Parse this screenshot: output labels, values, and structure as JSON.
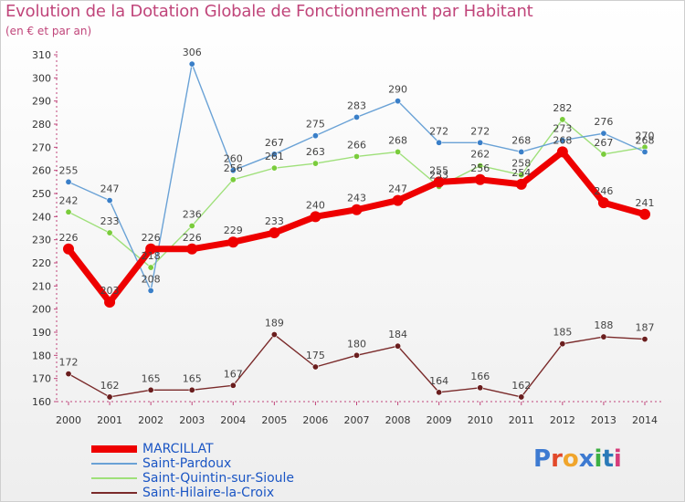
{
  "header": {
    "title": "Evolution de la Dotation Globale de Fonctionnement par Habitant",
    "subtitle": "(en € et par an)"
  },
  "logo": {
    "text": "Proxiti",
    "colors": [
      "#3d7ad1",
      "#e2492a",
      "#f0a52c",
      "#3d7ad1",
      "#3cb043",
      "#2a7ab8",
      "#d63c7a"
    ]
  },
  "chart_data": {
    "type": "line",
    "x": [
      2000,
      2001,
      2002,
      2003,
      2004,
      2005,
      2006,
      2007,
      2008,
      2009,
      2010,
      2011,
      2012,
      2013,
      2014
    ],
    "ylim": [
      160,
      310
    ],
    "yticks": [
      160,
      170,
      180,
      190,
      200,
      210,
      220,
      230,
      240,
      250,
      260,
      270,
      280,
      290,
      300,
      310
    ],
    "title": "Evolution de la Dotation Globale de Fonctionnement par Habitant",
    "subtitle": "(en € et par an)",
    "grid": false,
    "legend_position": "bottom-left",
    "series": [
      {
        "name": "MARCILLAT",
        "color": "#ee0000",
        "marker_color": "#ee0000",
        "emphasis": "bold",
        "values": [
          226,
          203,
          226,
          226,
          229,
          233,
          240,
          243,
          247,
          255,
          256,
          254,
          268,
          246,
          241
        ],
        "labels": [
          "226",
          "203",
          "226",
          "226",
          "229",
          "233",
          "240",
          "243",
          "247",
          "255",
          "256",
          "254",
          "268",
          "246",
          "241"
        ]
      },
      {
        "name": "Saint-Pardoux",
        "color": "#6aa2d6",
        "marker_color": "#3a7fc8",
        "values": [
          255,
          247,
          208,
          306,
          260,
          267,
          275,
          283,
          290,
          272,
          272,
          268,
          273,
          276,
          268
        ],
        "labels": [
          "255",
          "247",
          "208",
          "306",
          "260",
          "267",
          "275",
          "283",
          "290",
          "272",
          "272",
          "268",
          "273",
          "276",
          "268"
        ]
      },
      {
        "name": "Saint-Quintin-sur-Sioule",
        "color": "#9fe07a",
        "marker_color": "#7acc3c",
        "values": [
          242,
          233,
          218,
          236,
          256,
          261,
          263,
          266,
          268,
          253,
          262,
          258,
          282,
          267,
          270
        ],
        "labels": [
          "242",
          "233",
          "218",
          "236",
          "256",
          "261",
          "263",
          "266",
          "268",
          "253",
          "262",
          "258",
          "282",
          "267",
          "270"
        ]
      },
      {
        "name": "Saint-Hilaire-la-Croix",
        "color": "#7a2a2a",
        "marker_color": "#6a1e1e",
        "values": [
          172,
          162,
          165,
          165,
          167,
          189,
          175,
          180,
          184,
          164,
          166,
          162,
          185,
          188,
          187
        ],
        "labels": [
          "172",
          "162",
          "165",
          "165",
          "167",
          "189",
          "175",
          "180",
          "184",
          "164",
          "166",
          "162",
          "185",
          "188",
          "187"
        ]
      }
    ]
  }
}
